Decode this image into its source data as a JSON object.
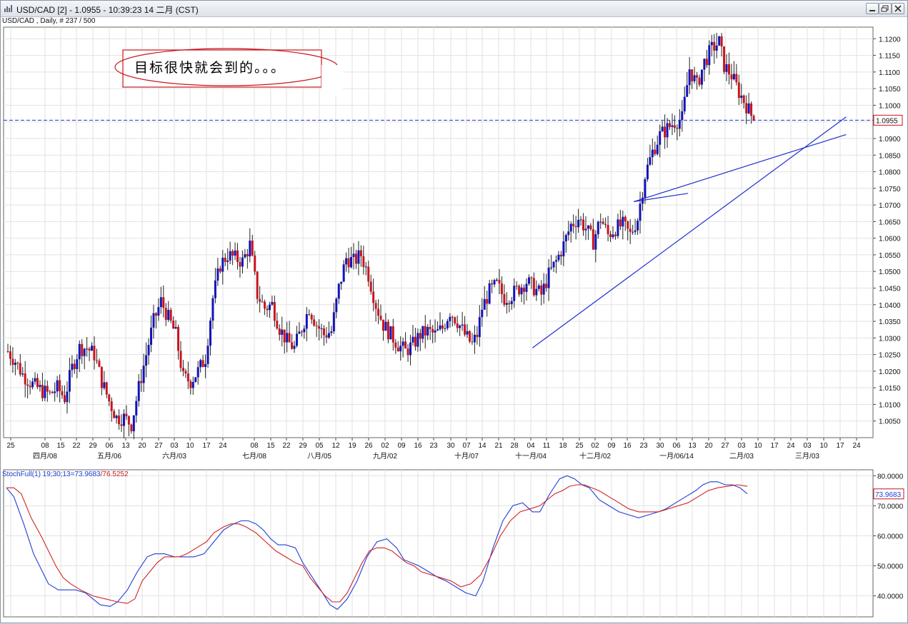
{
  "window": {
    "title": "USD/CAD [2] - 1.0955 - 10:39:23  14 二月 (CST)",
    "subtitle": "USD/CAD , Daily, # 237 / 500",
    "buttons": [
      "minimize",
      "restore",
      "close"
    ]
  },
  "annotation_text": "目标很快就会到的。。。",
  "chart_data": [
    {
      "type": "candlestick",
      "symbol": "USD/CAD",
      "timeframe": "Daily",
      "ylim": [
        1.0,
        1.1235
      ],
      "yticks": [
        "1.1200",
        "1.1150",
        "1.1100",
        "1.1050",
        "1.1000",
        "1.0950",
        "1.0900",
        "1.0850",
        "1.0800",
        "1.0750",
        "1.0700",
        "1.0650",
        "1.0600",
        "1.0550",
        "1.0500",
        "1.0450",
        "1.0400",
        "1.0350",
        "1.0300",
        "1.0250",
        "1.0200",
        "1.0150",
        "1.0100",
        "1.0050"
      ],
      "xticks": [
        "25",
        "08",
        "15",
        "22",
        "29",
        "06",
        "13",
        "20",
        "27",
        "03",
        "10",
        "17",
        "24",
        "08",
        "15",
        "22",
        "29",
        "05",
        "12",
        "19",
        "26",
        "02",
        "09",
        "16",
        "23",
        "30",
        "07",
        "14",
        "21",
        "28",
        "04",
        "11",
        "18",
        "25",
        "02",
        "09",
        "16",
        "23",
        "30",
        "06",
        "13",
        "20",
        "27",
        "03",
        "10",
        "17",
        "24",
        "03",
        "10",
        "17",
        "24"
      ],
      "month_labels": [
        "四月/08",
        "五月/06",
        "六月/03",
        "七月/08",
        "八月/05",
        "九月/02",
        "十月/07",
        "十一月/04",
        "十二月/02",
        "一月/06/14",
        "二月/03",
        "三月/03"
      ],
      "current_price": "1.0955",
      "close_path": [
        [
          0,
          1.026
        ],
        [
          3,
          1.023
        ],
        [
          6,
          1.019
        ],
        [
          10,
          1.016
        ],
        [
          14,
          1.014
        ],
        [
          17,
          1.013
        ],
        [
          20,
          1.015
        ],
        [
          23,
          1.012
        ],
        [
          26,
          1.021
        ],
        [
          29,
          1.027
        ],
        [
          32,
          1.027
        ],
        [
          35,
          1.025
        ],
        [
          38,
          1.017
        ],
        [
          41,
          1.011
        ],
        [
          44,
          1.006
        ],
        [
          47,
          1.006
        ],
        [
          50,
          1.004
        ],
        [
          53,
          1.015
        ],
        [
          56,
          1.025
        ],
        [
          59,
          1.035
        ],
        [
          62,
          1.041
        ],
        [
          65,
          1.036
        ],
        [
          68,
          1.031
        ],
        [
          71,
          1.018
        ],
        [
          74,
          1.017
        ],
        [
          77,
          1.02
        ],
        [
          80,
          1.024
        ],
        [
          83,
          1.042
        ],
        [
          86,
          1.052
        ],
        [
          89,
          1.055
        ],
        [
          92,
          1.054
        ],
        [
          95,
          1.053
        ],
        [
          98,
          1.058
        ],
        [
          101,
          1.043
        ],
        [
          104,
          1.039
        ],
        [
          107,
          1.04
        ],
        [
          110,
          1.033
        ],
        [
          113,
          1.029
        ],
        [
          116,
          1.027
        ],
        [
          119,
          1.033
        ],
        [
          122,
          1.039
        ],
        [
          125,
          1.034
        ],
        [
          128,
          1.031
        ],
        [
          131,
          1.032
        ],
        [
          134,
          1.045
        ],
        [
          137,
          1.054
        ],
        [
          140,
          1.053
        ],
        [
          143,
          1.055
        ],
        [
          146,
          1.049
        ],
        [
          149,
          1.04
        ],
        [
          152,
          1.034
        ],
        [
          155,
          1.031
        ],
        [
          158,
          1.028
        ],
        [
          161,
          1.026
        ],
        [
          164,
          1.028
        ],
        [
          167,
          1.031
        ],
        [
          170,
          1.032
        ],
        [
          173,
          1.031
        ],
        [
          176,
          1.033
        ],
        [
          179,
          1.038
        ],
        [
          182,
          1.035
        ],
        [
          185,
          1.031
        ],
        [
          188,
          1.028
        ],
        [
          190,
          1.031
        ],
        [
          192,
          1.039
        ],
        [
          195,
          1.044
        ],
        [
          198,
          1.046
        ],
        [
          201,
          1.042
        ],
        [
          204,
          1.043
        ],
        [
          207,
          1.045
        ],
        [
          210,
          1.047
        ],
        [
          213,
          1.045
        ],
        [
          216,
          1.043
        ],
        [
          219,
          1.049
        ],
        [
          222,
          1.053
        ],
        [
          225,
          1.058
        ],
        [
          228,
          1.064
        ],
        [
          231,
          1.066
        ],
        [
          234,
          1.063
        ],
        [
          237,
          1.059
        ],
        [
          240,
          1.066
        ],
        [
          243,
          1.061
        ],
        [
          246,
          1.063
        ],
        [
          249,
          1.064
        ],
        [
          252,
          1.061
        ],
        [
          255,
          1.066
        ],
        [
          258,
          1.079
        ],
        [
          261,
          1.086
        ],
        [
          264,
          1.091
        ],
        [
          267,
          1.093
        ],
        [
          270,
          1.095
        ],
        [
          273,
          1.096
        ],
        [
          276,
          1.111
        ],
        [
          279,
          1.106
        ],
        [
          282,
          1.113
        ],
        [
          285,
          1.117
        ],
        [
          288,
          1.119
        ],
        [
          290,
          1.112
        ],
        [
          293,
          1.109
        ],
        [
          296,
          1.104
        ],
        [
          299,
          1.1
        ],
        [
          302,
          1.0955
        ]
      ],
      "trendlines": [
        {
          "from": [
            "2013-10-24",
            1.027
          ],
          "to": [
            "2014-02-28",
            1.0965
          ]
        },
        {
          "from": [
            "2013-12-04",
            1.071
          ],
          "to": [
            "2014-02-28",
            1.0912
          ]
        },
        {
          "from": [
            "2013-12-04",
            1.071
          ],
          "to": [
            "2013-12-26",
            1.0735
          ]
        }
      ],
      "hline": 1.0955
    },
    {
      "type": "line",
      "label": "StochFull(1) 19,30,13 = 73.9683 / 76.5252",
      "label_main": "StochFull(1) 19;30;13=73.9683",
      "label_signal": "/76.5252",
      "ylim": [
        33,
        82
      ],
      "yticks": [
        "80.0000",
        "70.0000",
        "60.0000",
        "50.0000",
        "40.0000"
      ],
      "last_value": "73.9683",
      "series": [
        {
          "name": "%K",
          "color": "#1f3fd6",
          "values": [
            [
              0,
              76
            ],
            [
              3,
              73
            ],
            [
              7,
              64
            ],
            [
              11,
              54
            ],
            [
              14,
              49
            ],
            [
              17,
              44
            ],
            [
              21,
              42
            ],
            [
              25,
              42
            ],
            [
              28,
              42
            ],
            [
              32,
              41
            ],
            [
              35,
              39
            ],
            [
              38,
              37
            ],
            [
              42,
              36.5
            ],
            [
              45,
              38
            ],
            [
              49,
              42
            ],
            [
              53,
              48
            ],
            [
              57,
              53
            ],
            [
              60,
              54
            ],
            [
              64,
              54
            ],
            [
              68,
              53
            ],
            [
              72,
              53
            ],
            [
              76,
              53
            ],
            [
              80,
              54
            ],
            [
              84,
              58
            ],
            [
              88,
              62
            ],
            [
              92,
              64
            ],
            [
              95,
              65
            ],
            [
              98,
              65
            ],
            [
              101,
              64
            ],
            [
              104,
              62
            ],
            [
              107,
              59
            ],
            [
              110,
              57
            ],
            [
              113,
              57
            ],
            [
              117,
              56
            ],
            [
              120,
              51
            ],
            [
              124,
              46
            ],
            [
              128,
              41
            ],
            [
              131,
              37
            ],
            [
              134,
              35.5
            ],
            [
              138,
              39
            ],
            [
              142,
              45
            ],
            [
              146,
              53
            ],
            [
              150,
              58
            ],
            [
              154,
              59
            ],
            [
              158,
              56
            ],
            [
              161,
              52
            ],
            [
              164,
              51
            ],
            [
              167,
              50
            ],
            [
              171,
              48
            ],
            [
              175,
              46
            ],
            [
              178,
              45
            ],
            [
              182,
              43
            ],
            [
              186,
              41
            ],
            [
              190,
              40
            ],
            [
              193,
              45
            ],
            [
              197,
              56
            ],
            [
              201,
              65
            ],
            [
              205,
              70
            ],
            [
              209,
              71
            ],
            [
              213,
              68
            ],
            [
              216,
              68
            ],
            [
              220,
              74
            ],
            [
              224,
              79
            ],
            [
              227,
              80
            ],
            [
              230,
              79
            ],
            [
              233,
              77
            ],
            [
              236,
              76
            ],
            [
              240,
              72
            ],
            [
              244,
              70
            ],
            [
              248,
              68
            ],
            [
              252,
              67
            ],
            [
              256,
              66
            ],
            [
              260,
              67
            ],
            [
              264,
              68
            ],
            [
              267,
              69
            ],
            [
              271,
              71
            ],
            [
              275,
              73
            ],
            [
              279,
              75
            ],
            [
              282,
              77
            ],
            [
              285,
              78
            ],
            [
              288,
              78
            ],
            [
              291,
              77
            ],
            [
              294,
              77
            ],
            [
              297,
              76
            ],
            [
              300,
              74
            ]
          ]
        },
        {
          "name": "%D",
          "color": "#d42222",
          "values": [
            [
              0,
              76
            ],
            [
              3,
              76
            ],
            [
              6,
              74
            ],
            [
              10,
              66
            ],
            [
              14,
              60
            ],
            [
              17,
              55
            ],
            [
              20,
              50
            ],
            [
              23,
              46
            ],
            [
              26,
              44
            ],
            [
              30,
              42
            ],
            [
              35,
              40
            ],
            [
              40,
              39
            ],
            [
              45,
              38
            ],
            [
              49,
              37.5
            ],
            [
              52,
              39
            ],
            [
              55,
              45
            ],
            [
              58,
              48
            ],
            [
              61,
              51
            ],
            [
              64,
              53
            ],
            [
              67,
              53
            ],
            [
              70,
              53
            ],
            [
              73,
              54
            ],
            [
              77,
              56
            ],
            [
              81,
              58
            ],
            [
              84,
              61
            ],
            [
              88,
              63
            ],
            [
              91,
              64
            ],
            [
              94,
              64
            ],
            [
              97,
              63
            ],
            [
              101,
              61
            ],
            [
              105,
              58
            ],
            [
              109,
              55
            ],
            [
              113,
              53
            ],
            [
              117,
              51
            ],
            [
              120,
              50
            ],
            [
              123,
              46
            ],
            [
              126,
              43
            ],
            [
              129,
              40
            ],
            [
              132,
              38
            ],
            [
              135,
              38
            ],
            [
              138,
              41
            ],
            [
              141,
              46
            ],
            [
              144,
              51
            ],
            [
              147,
              55
            ],
            [
              150,
              56
            ],
            [
              153,
              56
            ],
            [
              156,
              55
            ],
            [
              159,
              53
            ],
            [
              162,
              51
            ],
            [
              165,
              50
            ],
            [
              168,
              48
            ],
            [
              172,
              47
            ],
            [
              176,
              46
            ],
            [
              180,
              45
            ],
            [
              184,
              43
            ],
            [
              188,
              44
            ],
            [
              192,
              47
            ],
            [
              196,
              53
            ],
            [
              200,
              60
            ],
            [
              204,
              65
            ],
            [
              208,
              68
            ],
            [
              212,
              69
            ],
            [
              216,
              70
            ],
            [
              219,
              72
            ],
            [
              222,
              74
            ],
            [
              225,
              75
            ],
            [
              228,
              76.5
            ],
            [
              231,
              77
            ],
            [
              234,
              77
            ],
            [
              237,
              76
            ],
            [
              240,
              75
            ],
            [
              244,
              73
            ],
            [
              248,
              71
            ],
            [
              252,
              69
            ],
            [
              256,
              68
            ],
            [
              260,
              68
            ],
            [
              264,
              68
            ],
            [
              268,
              69
            ],
            [
              272,
              70
            ],
            [
              276,
              71
            ],
            [
              280,
              73
            ],
            [
              284,
              75
            ],
            [
              288,
              76
            ],
            [
              292,
              76.5
            ],
            [
              296,
              77
            ],
            [
              300,
              76.5
            ]
          ]
        }
      ]
    }
  ]
}
